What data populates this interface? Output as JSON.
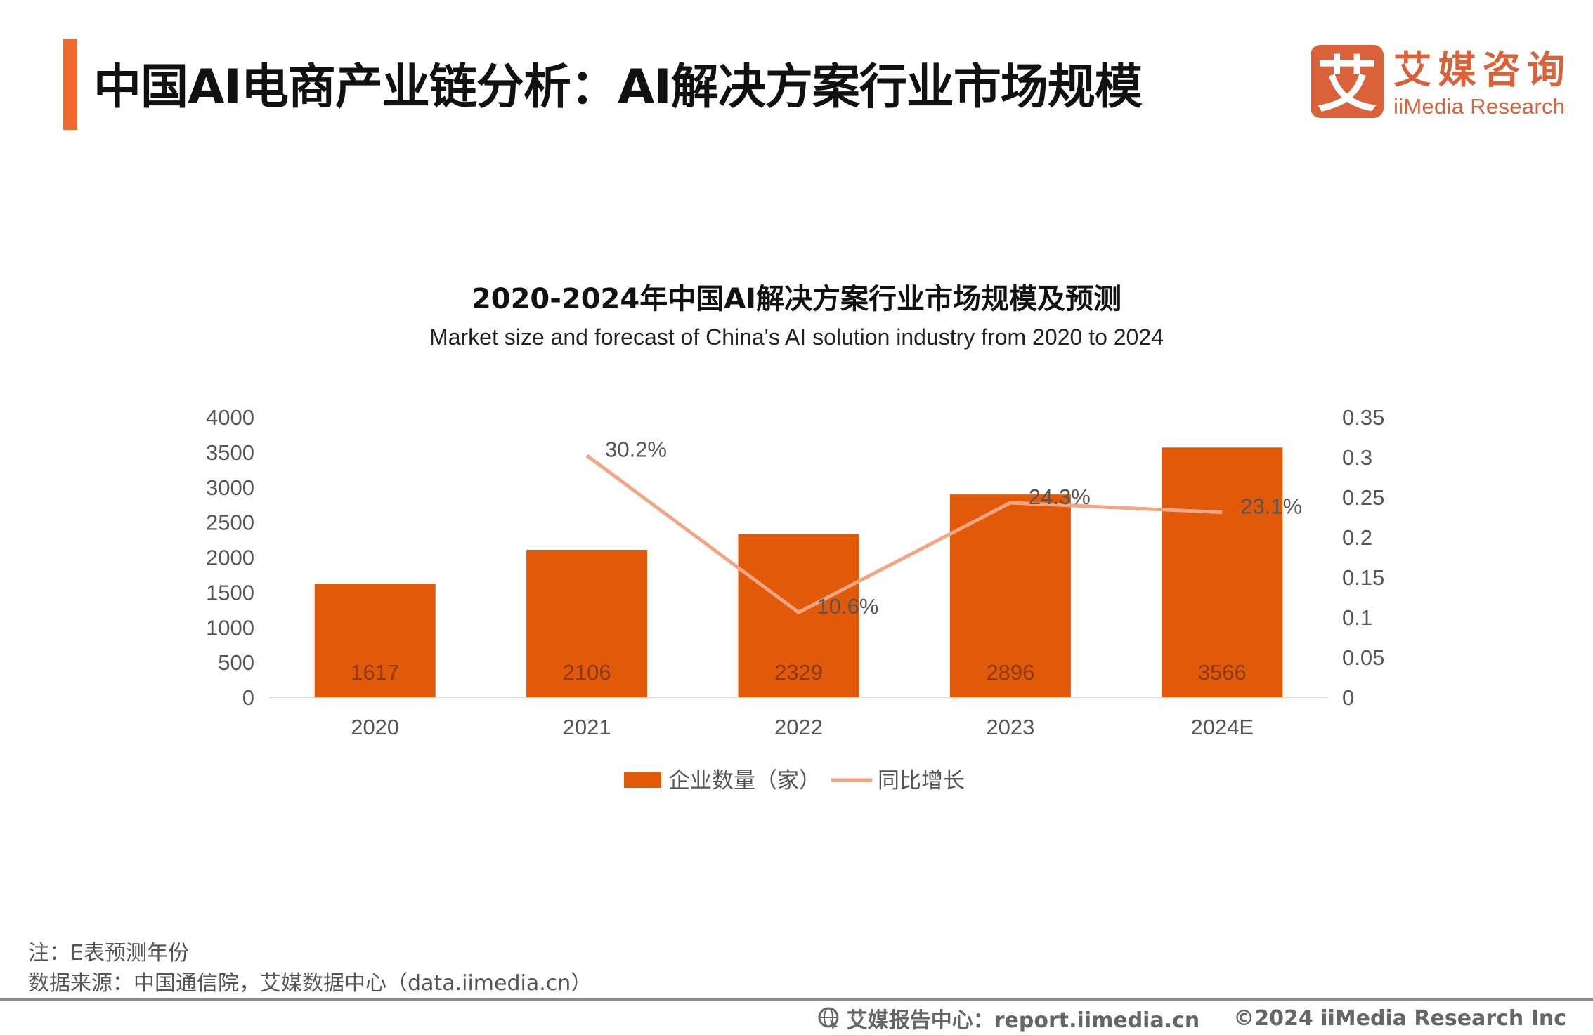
{
  "header": {
    "title": "中国AI电商产业链分析：AI解决方案行业市场规模",
    "accent_color": "#ee6a2f"
  },
  "logo": {
    "mark": "艾",
    "cn": "艾媒咨询",
    "en": "iiMedia Research",
    "color": "#d9623a"
  },
  "chart_data": {
    "type": "bar+line",
    "title": "2020-2024年中国AI解决方案行业市场规模及预测",
    "subtitle": "Market size and forecast of China's AI solution industry from 2020 to 2024",
    "categories": [
      "2020",
      "2021",
      "2022",
      "2023",
      "2024E"
    ],
    "series": [
      {
        "name": "企业数量（家）",
        "type": "bar",
        "axis": "left",
        "color": "#e05a0a",
        "values": [
          1617,
          2106,
          2329,
          2896,
          3566
        ],
        "labels": [
          "1617",
          "2106",
          "2329",
          "2896",
          "3566"
        ]
      },
      {
        "name": "同比增长",
        "type": "line",
        "axis": "right",
        "color": "#f4a584",
        "values": [
          null,
          0.302,
          0.106,
          0.243,
          0.231
        ],
        "labels": [
          "",
          "30.2%",
          "10.6%",
          "24.3%",
          "23.1%"
        ]
      }
    ],
    "left_axis": {
      "ylim": [
        0,
        4000
      ],
      "ticks": [
        "0",
        "500",
        "1000",
        "1500",
        "2000",
        "2500",
        "3000",
        "3500",
        "4000"
      ]
    },
    "right_axis": {
      "ylim": [
        0,
        0.35
      ],
      "ticks": [
        "0",
        "0.05",
        "0.1",
        "0.15",
        "0.2",
        "0.25",
        "0.3",
        "0.35"
      ]
    },
    "grid": false,
    "legend": "bottom"
  },
  "notes": {
    "note": "注：E表预测年份",
    "source": "数据来源：中国通信院，艾媒数据中心（data.iimedia.cn）"
  },
  "footer": {
    "report": "艾媒报告中心：report.iimedia.cn",
    "copyright": "©2024  iiMedia Research  Inc",
    "icon": "globe-cursor-icon"
  }
}
